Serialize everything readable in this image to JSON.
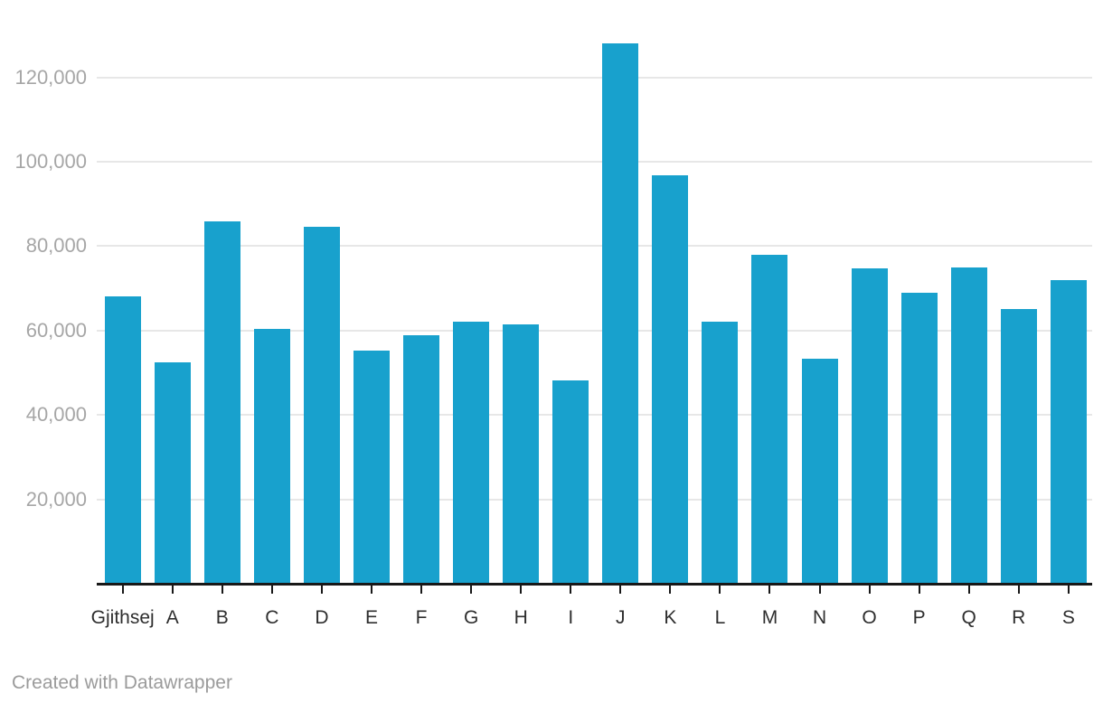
{
  "chart_data": {
    "type": "bar",
    "title": "",
    "xlabel": "",
    "ylabel": "",
    "categories": [
      "Gjithsej",
      "A",
      "B",
      "C",
      "D",
      "E",
      "F",
      "G",
      "H",
      "I",
      "J",
      "K",
      "L",
      "M",
      "N",
      "O",
      "P",
      "Q",
      "R",
      "S"
    ],
    "values": [
      68200,
      52500,
      85900,
      60300,
      84500,
      55300,
      58900,
      62200,
      61500,
      48200,
      128000,
      96700,
      62100,
      77900,
      53400,
      74700,
      68900,
      74900,
      65200,
      71900
    ],
    "ylim": [
      0,
      138000
    ],
    "yticks": [
      20000,
      40000,
      60000,
      80000,
      100000,
      120000
    ],
    "ytick_labels": [
      "20,000",
      "40,000",
      "60,000",
      "80,000",
      "100,000",
      "120,000"
    ],
    "grid": true,
    "legend": "none",
    "bar_color": "#18a1cd",
    "gridline_color": "#e7e7e7",
    "axis_line_color": "#181818",
    "ytick_label_color": "#a6a6a6",
    "xtick_label_color": "#2e2e2e"
  },
  "footer": {
    "credit": "Created with Datawrapper",
    "credit_color": "#9b9b9b"
  }
}
